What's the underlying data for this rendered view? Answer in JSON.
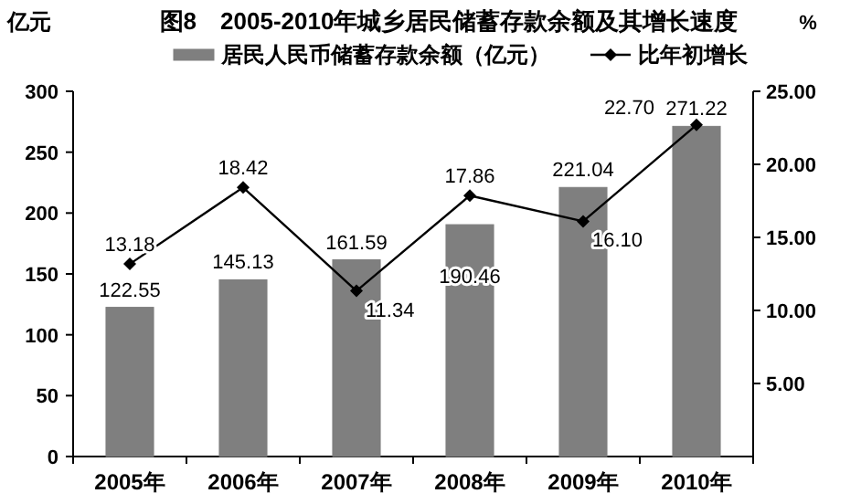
{
  "chart_data": {
    "type": "bar",
    "title": "图8　2005-2010年城乡居民储蓄存款余额及其增长速度",
    "ylabel": "亿元",
    "y2label": "%",
    "categories": [
      "2005年",
      "2006年",
      "2007年",
      "2008年",
      "2009年",
      "2010年"
    ],
    "series": [
      {
        "name": "居民人民币储蓄存款余额（亿元）",
        "color": "#7f7f7f",
        "values": [
          122.55,
          145.13,
          161.59,
          190.46,
          221.04,
          271.22
        ]
      },
      {
        "name": "比年初增长",
        "type": "line",
        "axis": "y2",
        "marker": "diamond",
        "color": "#000000",
        "values": [
          13.18,
          18.42,
          11.34,
          17.86,
          16.1,
          22.7
        ],
        "value_labels": [
          "13.18",
          "18.42",
          "11.34",
          "17.86",
          "16.10",
          "22.70"
        ]
      }
    ],
    "ylim": [
      0,
      300
    ],
    "yticks": [
      0,
      50,
      100,
      150,
      200,
      250,
      300
    ],
    "y2lim": [
      0,
      25
    ],
    "y2ticks": [
      {
        "value": 5,
        "label": "5.00"
      },
      {
        "value": 10,
        "label": "10.00"
      },
      {
        "value": 15,
        "label": "15.00"
      },
      {
        "value": 20,
        "label": "20.00"
      },
      {
        "value": 25,
        "label": "25.00"
      }
    ],
    "data_labels": true,
    "legend": "top"
  }
}
